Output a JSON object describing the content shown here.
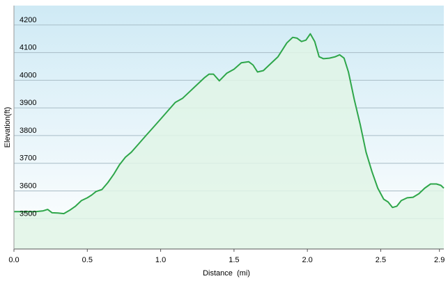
{
  "chart_data": {
    "type": "area",
    "title": "",
    "xlabel": "Distance  (mi)",
    "ylabel": "Elevation(ft)",
    "xlim": [
      0,
      2.93
    ],
    "ylim": [
      3390,
      4270
    ],
    "x_ticks": [
      0,
      0.5,
      1.0,
      1.5,
      2.0,
      2.5,
      2.9
    ],
    "x_tick_labels": [
      "0.0",
      "0.5",
      "1.0",
      "1.5",
      "2.0",
      "2.5",
      "2.9"
    ],
    "y_ticks": [
      3500,
      3600,
      3700,
      3800,
      3900,
      4000,
      4100,
      4200
    ],
    "y_tick_labels": [
      "3500",
      "3600",
      "3700",
      "3800",
      "3900",
      "4000",
      "4100",
      "4200"
    ],
    "grid": "horizontal",
    "colors": {
      "line": "#2ea64a",
      "fill": "#e0f4e6",
      "background_top": "#cfeaf5",
      "background_bottom": "#ffffff",
      "gridline": "#a8bcc6"
    },
    "series": [
      {
        "x": [
          0,
          0.05,
          0.1,
          0.15,
          0.2,
          0.23,
          0.26,
          0.3,
          0.34,
          0.38,
          0.42,
          0.46,
          0.5,
          0.53,
          0.56,
          0.6,
          0.64,
          0.68,
          0.72,
          0.76,
          0.8,
          0.85,
          0.9,
          0.95,
          1.0,
          1.05,
          1.1,
          1.15,
          1.2,
          1.25,
          1.3,
          1.33,
          1.36,
          1.4,
          1.45,
          1.5,
          1.55,
          1.6,
          1.63,
          1.66,
          1.7,
          1.75,
          1.8,
          1.83,
          1.86,
          1.9,
          1.93,
          1.96,
          1.99,
          2.02,
          2.05,
          2.08,
          2.11,
          2.15,
          2.19,
          2.22,
          2.25,
          2.28,
          2.32,
          2.36,
          2.4,
          2.44,
          2.48,
          2.52,
          2.55,
          2.58,
          2.61,
          2.64,
          2.68,
          2.72,
          2.76,
          2.8,
          2.84,
          2.88,
          2.91,
          2.93
        ],
        "y": [
          3525,
          3525,
          3525,
          3525,
          3528,
          3533,
          3521,
          3520,
          3518,
          3530,
          3545,
          3565,
          3575,
          3585,
          3598,
          3605,
          3630,
          3660,
          3695,
          3722,
          3740,
          3770,
          3800,
          3830,
          3860,
          3890,
          3920,
          3935,
          3960,
          3985,
          4010,
          4022,
          4022,
          3998,
          4025,
          4040,
          4063,
          4067,
          4055,
          4030,
          4035,
          4060,
          4085,
          4110,
          4135,
          4155,
          4152,
          4140,
          4145,
          4168,
          4140,
          4085,
          4078,
          4080,
          4085,
          4092,
          4080,
          4030,
          3930,
          3840,
          3740,
          3670,
          3610,
          3570,
          3560,
          3540,
          3545,
          3565,
          3575,
          3577,
          3590,
          3610,
          3625,
          3625,
          3620,
          3610
        ]
      }
    ]
  }
}
